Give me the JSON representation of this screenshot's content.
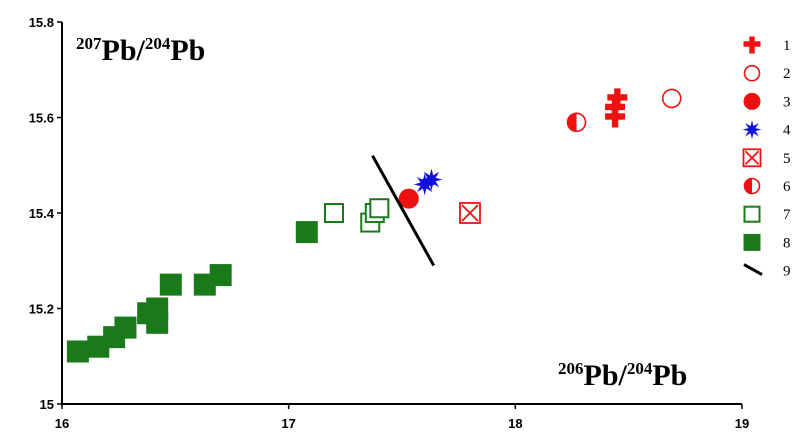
{
  "chart_data": {
    "type": "scatter",
    "ylabel_parts": {
      "sup1": "207",
      "main1": "Pb/",
      "sup2": "204",
      "main2": "Pb"
    },
    "xlabel_parts": {
      "sup1": "206",
      "main1": "Pb/",
      "sup2": "204",
      "main2": "Pb"
    },
    "xlim": [
      16,
      19
    ],
    "ylim": [
      15.0,
      15.8
    ],
    "x_ticks": [
      16,
      17,
      18,
      19
    ],
    "y_ticks": [
      15,
      15.2,
      15.4,
      15.6,
      15.8
    ],
    "grid": false,
    "legend_position": "right",
    "colors": {
      "red": "#ee1111",
      "blue": "#1111dd",
      "green": "#1a7a1a",
      "black": "#000000"
    },
    "series": [
      {
        "legend": "1",
        "marker": "cross",
        "color": "#ee1111",
        "points": [
          [
            18.44,
            15.6
          ],
          [
            18.44,
            15.62
          ],
          [
            18.45,
            15.64
          ]
        ]
      },
      {
        "legend": "2",
        "marker": "open-circle",
        "color": "#ee1111",
        "points": [
          [
            18.69,
            15.64
          ]
        ]
      },
      {
        "legend": "3",
        "marker": "filled-circle",
        "color": "#ee1111",
        "points": [
          [
            17.53,
            15.43
          ]
        ]
      },
      {
        "legend": "4",
        "marker": "star",
        "color": "#1111dd",
        "points": [
          [
            17.6,
            15.46
          ],
          [
            17.63,
            15.47
          ]
        ]
      },
      {
        "legend": "5",
        "marker": "boxed-x",
        "color": "#ee1111",
        "points": [
          [
            17.8,
            15.4
          ]
        ]
      },
      {
        "legend": "6",
        "marker": "half-circle",
        "color": "#ee1111",
        "points": [
          [
            18.27,
            15.59
          ]
        ]
      },
      {
        "legend": "7",
        "marker": "open-square",
        "color": "#1a7a1a",
        "points": [
          [
            17.2,
            15.4
          ],
          [
            17.36,
            15.38
          ],
          [
            17.38,
            15.4
          ],
          [
            17.4,
            15.41
          ]
        ]
      },
      {
        "legend": "8",
        "marker": "filled-square",
        "color": "#1a7a1a",
        "points": [
          [
            16.07,
            15.11
          ],
          [
            16.16,
            15.12
          ],
          [
            16.23,
            15.14
          ],
          [
            16.28,
            15.16
          ],
          [
            16.38,
            15.19
          ],
          [
            16.42,
            15.2
          ],
          [
            16.42,
            15.17
          ],
          [
            16.48,
            15.25
          ],
          [
            16.63,
            15.25
          ],
          [
            16.7,
            15.27
          ],
          [
            17.08,
            15.36
          ]
        ]
      },
      {
        "legend": "9",
        "marker": "line",
        "color": "#000000",
        "points": [
          [
            17.37,
            15.52
          ],
          [
            17.64,
            15.29
          ]
        ]
      }
    ]
  }
}
